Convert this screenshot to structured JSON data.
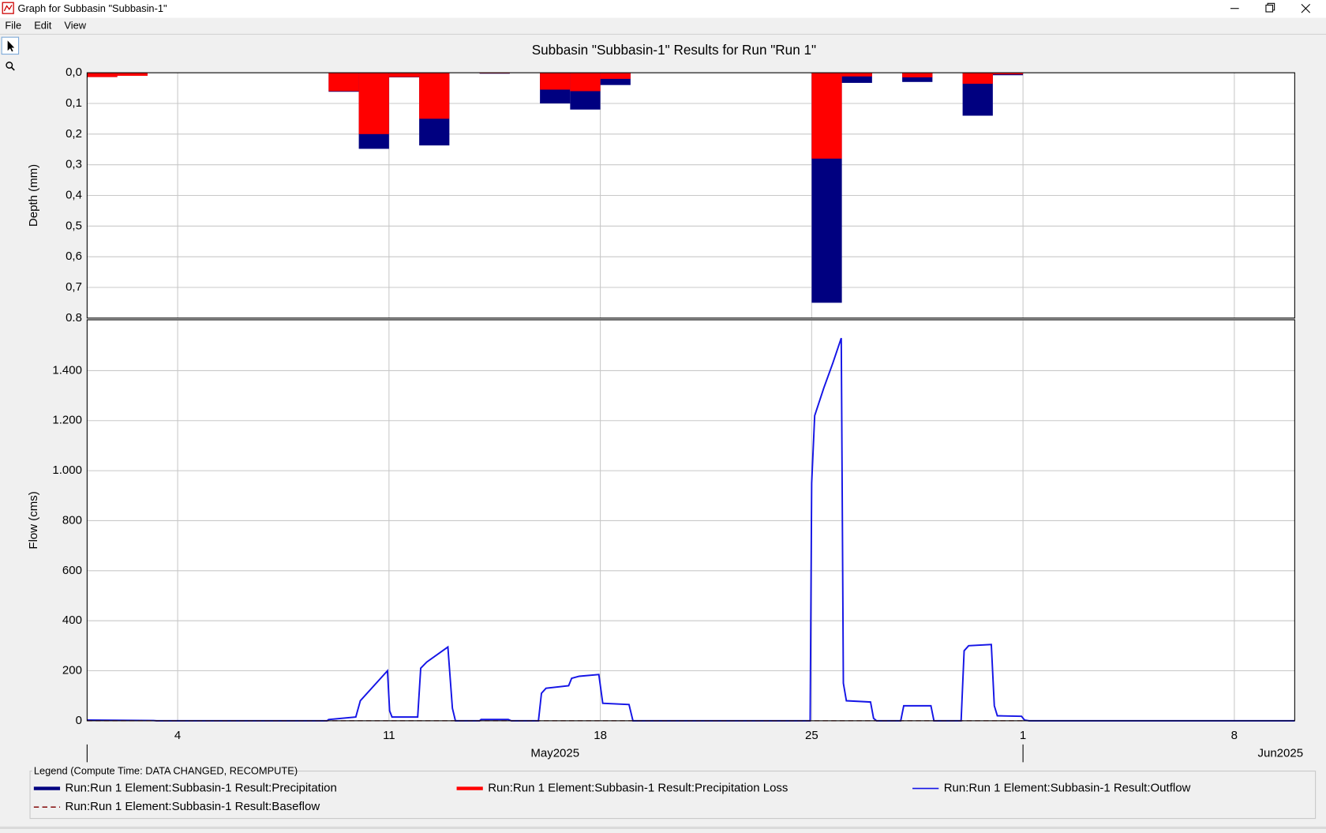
{
  "window": {
    "title": "Graph for Subbasin \"Subbasin-1\"",
    "menu": [
      "File",
      "Edit",
      "View"
    ]
  },
  "legend_title": "Legend (Compute Time: DATA CHANGED, RECOMPUTE)",
  "chart_data": [
    {
      "type": "bar",
      "title": "Subbasin \"Subbasin-1\" Results for Run \"Run 1\"",
      "ylabel": "Depth (mm)",
      "inverted": true,
      "ylim": [
        0,
        0.8
      ],
      "yticks": [
        {
          "value": 0,
          "label": "0,0"
        },
        {
          "value": 0.1,
          "label": "0,1"
        },
        {
          "value": 0.2,
          "label": "0,2"
        },
        {
          "value": 0.3,
          "label": "0,3"
        },
        {
          "value": 0.4,
          "label": "0,4"
        },
        {
          "value": 0.5,
          "label": "0,5"
        },
        {
          "value": 0.6,
          "label": "0,6"
        },
        {
          "value": 0.7,
          "label": "0,7"
        },
        {
          "value": 0.8,
          "label": "0.8"
        }
      ],
      "xlim": [
        1,
        41
      ],
      "grid": true,
      "x": [
        1,
        2,
        9,
        10,
        11,
        12,
        14,
        16,
        17,
        18,
        25,
        26,
        28,
        30,
        31
      ],
      "series": [
        {
          "name": "Run:Run 1 Element:Subbasin-1 Result:Precipitation",
          "color": "#000080",
          "values": [
            0.014,
            0.01,
            0.062,
            0.248,
            0.015,
            0.237,
            0.003,
            0.1,
            0.12,
            0.04,
            0.75,
            0.033,
            0.03,
            0.14,
            0.008
          ]
        },
        {
          "name": "Run:Run 1 Element:Subbasin-1 Result:Precipitation Loss",
          "color": "#ff0000",
          "values": [
            0.014,
            0.01,
            0.06,
            0.2,
            0.014,
            0.15,
            0.002,
            0.055,
            0.06,
            0.02,
            0.28,
            0.012,
            0.015,
            0.036,
            0.005
          ]
        }
      ]
    },
    {
      "type": "line",
      "ylabel": "Flow (cms)",
      "ylim": [
        0,
        1600
      ],
      "yticks": [
        0,
        200,
        400,
        600,
        800,
        {
          "value": 1000,
          "label": "1.000"
        },
        {
          "value": 1200,
          "label": "1.200"
        },
        {
          "value": 1400,
          "label": "1.400"
        }
      ],
      "xlim": [
        1,
        41
      ],
      "grid": true,
      "xticks": [
        4,
        11,
        18,
        25,
        {
          "value": 32,
          "label": "1"
        },
        {
          "value": 39,
          "label": "8"
        }
      ],
      "x_period_labels": [
        "May2025",
        "Jun2025"
      ],
      "series": [
        {
          "name": "Run:Run 1 Element:Subbasin-1 Result:Outflow",
          "color": "#1414e6",
          "x": [
            1,
            3.2,
            3.3,
            8.95,
            9,
            9.9,
            10.05,
            10.95,
            11.02,
            11.1,
            11.95,
            12.05,
            12.25,
            12.95,
            13.1,
            13.2,
            14,
            14.05,
            14.95,
            15.05,
            15.95,
            16.05,
            16.2,
            16.95,
            17.05,
            17.3,
            17.95,
            18.08,
            18.95,
            19.08,
            24.95,
            25,
            25.1,
            25.4,
            25.7,
            25.98,
            26.05,
            26.15,
            26.95,
            27.05,
            27.15,
            27.95,
            28.05,
            28.95,
            29.05,
            29.95,
            30.05,
            30.2,
            30.95,
            31.05,
            31.15,
            31.95,
            32.05,
            32.2,
            41
          ],
          "values": [
            3,
            1,
            0,
            0,
            5,
            15,
            80,
            200,
            40,
            15,
            15,
            210,
            235,
            295,
            50,
            0,
            0,
            5,
            5,
            0,
            0,
            110,
            130,
            140,
            170,
            178,
            185,
            70,
            65,
            0,
            0,
            950,
            1220,
            1330,
            1430,
            1530,
            150,
            80,
            75,
            10,
            0,
            0,
            60,
            60,
            0,
            0,
            280,
            300,
            305,
            60,
            20,
            18,
            3,
            0,
            0
          ]
        },
        {
          "name": "Run:Run 1 Element:Subbasin-1 Result:Baseflow",
          "color": "#8b1a1a",
          "dashed": true,
          "x": [
            1,
            32
          ],
          "values": [
            0,
            0
          ]
        }
      ]
    }
  ]
}
